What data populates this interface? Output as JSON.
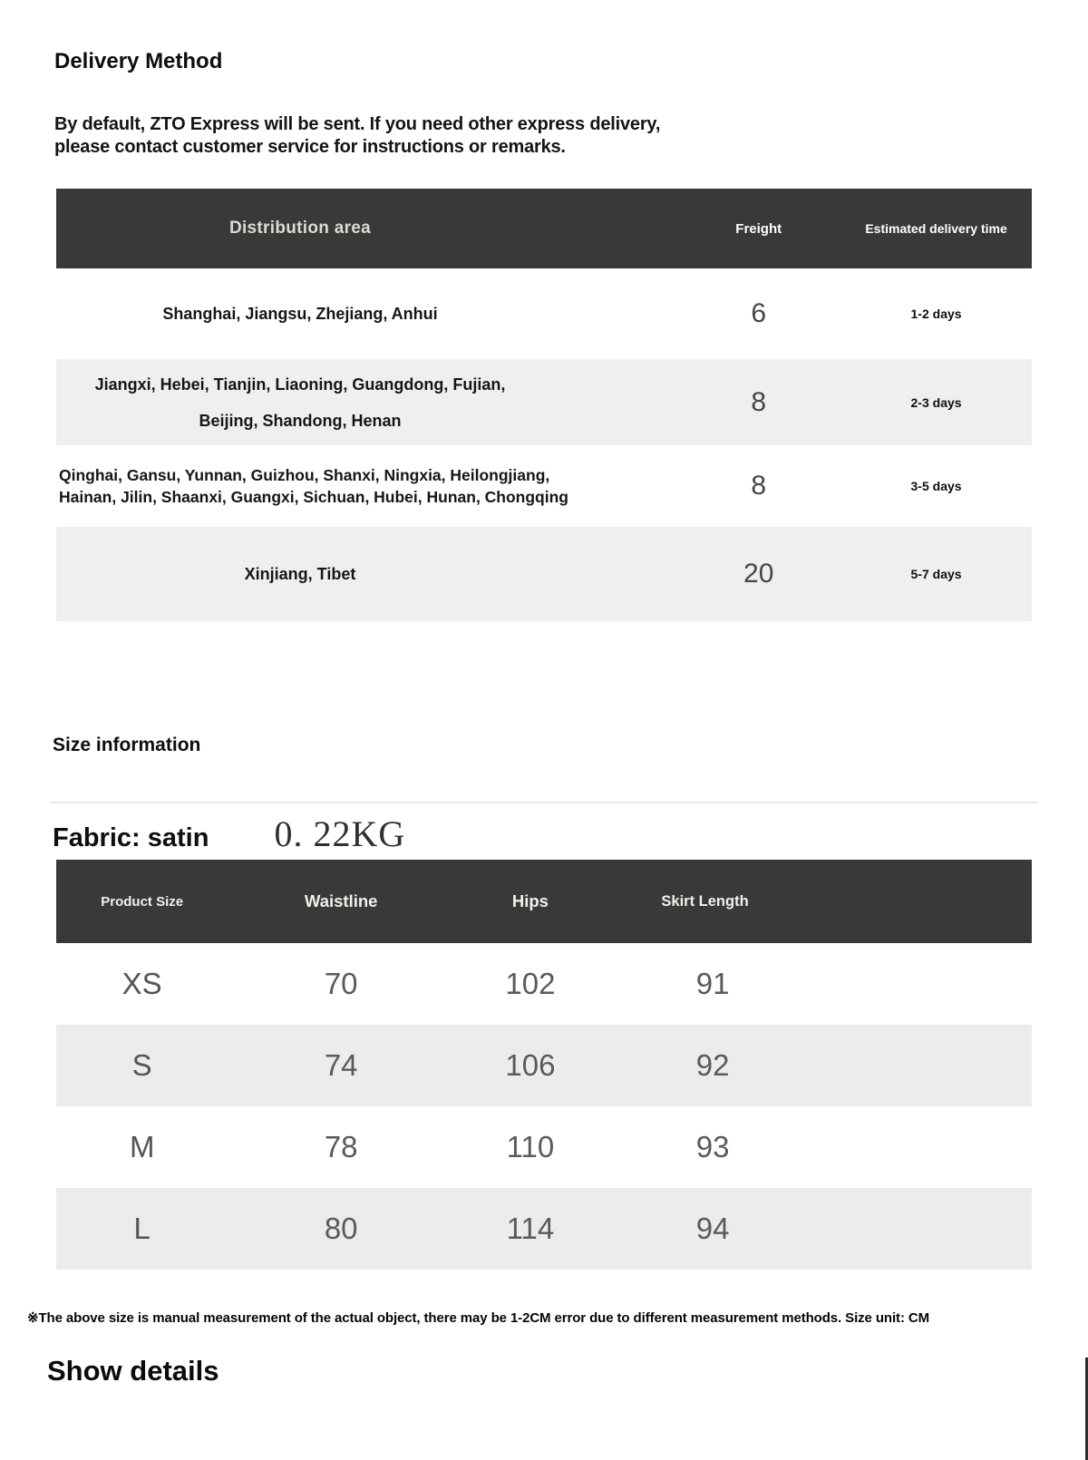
{
  "colors": {
    "table_header_bg": "#3b3937",
    "table_header_text": "#ffffff",
    "delivery_row_shade": "#efefef",
    "size_row_shade": "#ececec",
    "value_text": "#5a5a5a"
  },
  "delivery": {
    "title": "Delivery Method",
    "description_lines": [
      "By default, ZTO Express will be sent. If you need other express delivery,",
      "please contact customer service for instructions or remarks."
    ],
    "table": {
      "headers": {
        "area": "Distribution area",
        "freight": "Freight",
        "time": "Estimated delivery time"
      },
      "rows": [
        {
          "area_lines": [
            "Shanghai, Jiangsu, Zhejiang, Anhui"
          ],
          "freight": "6",
          "time": "1-2 days",
          "align": "center"
        },
        {
          "area_lines": [
            "Jiangxi, Hebei, Tianjin, Liaoning, Guangdong, Fujian,",
            "Beijing, Shandong, Henan"
          ],
          "freight": "8",
          "time": "2-3 days",
          "align": "center"
        },
        {
          "area_lines": [
            "Qinghai, Gansu, Yunnan, Guizhou, Shanxi, Ningxia, Heilongjiang,",
            "Hainan, Jilin, Shaanxi, Guangxi, Sichuan, Hubei, Hunan, Chongqing"
          ],
          "freight": "8",
          "time": "3-5 days",
          "align": "left"
        },
        {
          "area_lines": [
            "Xinjiang, Tibet"
          ],
          "freight": "20",
          "time": "5-7 days",
          "align": "center"
        }
      ]
    }
  },
  "size": {
    "title": "Size information",
    "fabric_label": "Fabric: satin",
    "weight": "0. 22KG",
    "table": {
      "headers": [
        "Product Size",
        "Waistline",
        "Hips",
        "Skirt Length"
      ],
      "rows": [
        {
          "size": "XS",
          "waistline": "70",
          "hips": "102",
          "skirt_length": "91"
        },
        {
          "size": "S",
          "waistline": "74",
          "hips": "106",
          "skirt_length": "92"
        },
        {
          "size": "M",
          "waistline": "78",
          "hips": "110",
          "skirt_length": "93"
        },
        {
          "size": "L",
          "waistline": "80",
          "hips": "114",
          "skirt_length": "94"
        }
      ]
    },
    "note": "※The above size is manual measurement of the actual object, there may be 1-2CM error due to different measurement methods. Size unit: CM"
  },
  "footer": {
    "show_details_label": "Show details"
  }
}
